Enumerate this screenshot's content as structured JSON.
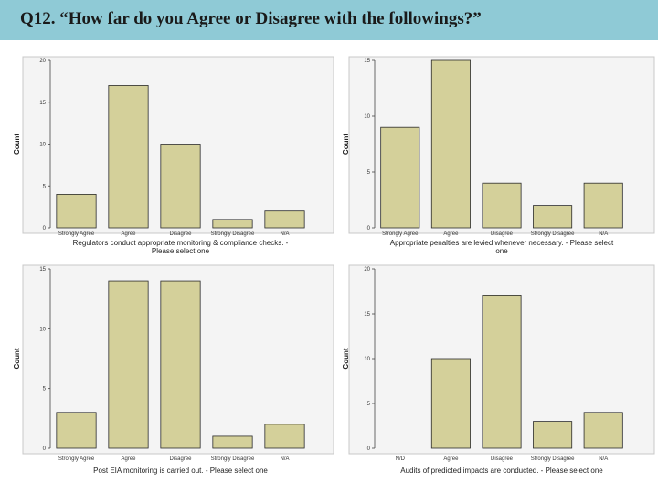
{
  "header": {
    "title": "Q12.  “How far do you Agree or Disagree with the followings?”",
    "background_color": "#8fcad6"
  },
  "colors": {
    "bar_fill": "#d4d09a",
    "bar_stroke": "#2b2b2b",
    "plot_background": "#f4f4f4"
  },
  "chart_data": [
    {
      "type": "bar",
      "title": "",
      "categories": [
        "Strongly Agree",
        "Agree",
        "Disagree",
        "Strongly Disagree",
        "N/A"
      ],
      "values": [
        4,
        17,
        10,
        1,
        2
      ],
      "ylim": [
        0,
        20
      ],
      "yticks": [
        "0",
        "5",
        "10",
        "15",
        "20"
      ],
      "ylabel": "Count",
      "xlabel_lines": [
        "Regulators conduct appropriate monitoring & compliance checks. -",
        "Please select one"
      ]
    },
    {
      "type": "bar",
      "title": "",
      "categories": [
        "Strongly Agree",
        "Agree",
        "Disagree",
        "Strongly Disagree",
        "N/A"
      ],
      "values": [
        9,
        15,
        4,
        2,
        4
      ],
      "ylim": [
        0,
        15
      ],
      "yticks": [
        "0",
        "5",
        "10",
        "15"
      ],
      "ylabel": "Count",
      "xlabel_lines": [
        "Appropriate penalties are levied whenever necessary. - Please select",
        "one"
      ]
    },
    {
      "type": "bar",
      "title": "",
      "categories": [
        "Strongly Agree",
        "Agree",
        "Disagree",
        "Strongly Disagree",
        "N/A"
      ],
      "values": [
        3,
        14,
        14,
        1,
        2
      ],
      "ylim": [
        0,
        15
      ],
      "yticks": [
        "0",
        "5",
        "10",
        "15"
      ],
      "ylabel": "Count",
      "xlabel_lines": [
        "Post EIA monitoring is carried out. - Please select one"
      ]
    },
    {
      "type": "bar",
      "title": "",
      "categories": [
        "N/D",
        "Agree",
        "Disagree",
        "Strongly Disagree",
        "N/A"
      ],
      "values": [
        0,
        10,
        17,
        3,
        4
      ],
      "ylim": [
        0,
        20
      ],
      "yticks": [
        "0",
        "5",
        "10",
        "15",
        "20"
      ],
      "ylabel": "Count",
      "xlabel_lines": [
        "Audits of predicted impacts are conducted. - Please select one"
      ]
    }
  ]
}
